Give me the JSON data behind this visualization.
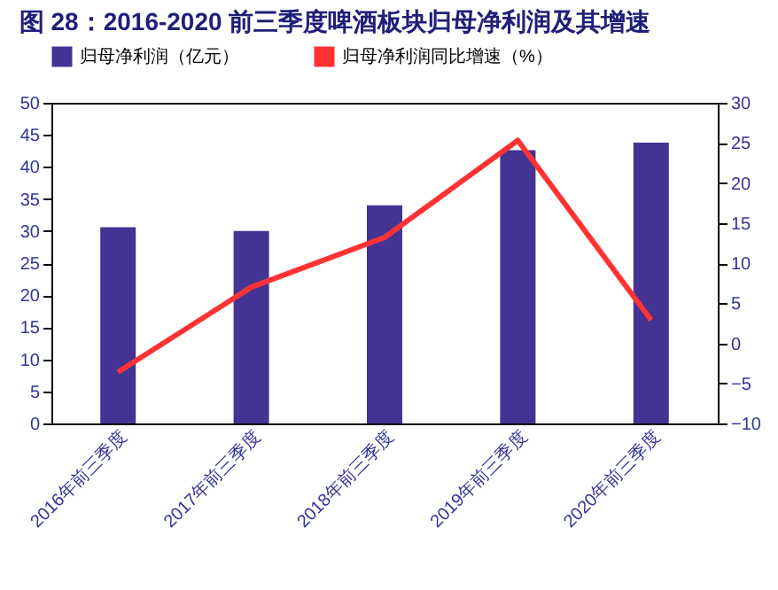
{
  "chart_data": {
    "type": "bar",
    "title": "图 28：2016-2020 前三季度啤酒板块归母净利润及其增速",
    "categories": [
      "2016年前三季度",
      "2017年前三季度",
      "2018年前三季度",
      "2019年前三季度",
      "2020年前三季度"
    ],
    "series": [
      {
        "name": "归母净利润（亿元）",
        "color": "#433393",
        "values": [
          30.6,
          30.0,
          34.0,
          42.6,
          43.8
        ]
      },
      {
        "name": "归母净利润同比增速（%）",
        "color": "#ff3333",
        "type": "line",
        "axis": "y2",
        "values": [
          -3.6,
          7.0,
          13.2,
          25.3,
          2.9
        ]
      }
    ],
    "ylim": [
      0,
      50
    ],
    "yticks": [
      0,
      5,
      10,
      15,
      20,
      25,
      30,
      35,
      40,
      45,
      50
    ],
    "y2lim": [
      -10,
      30
    ],
    "y2ticks": [
      -10,
      -5,
      0,
      5,
      10,
      15,
      20,
      25,
      30
    ],
    "legend": "top",
    "grid": false
  }
}
